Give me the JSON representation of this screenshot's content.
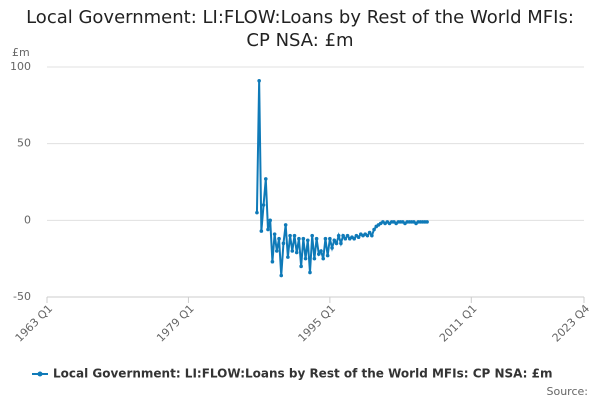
{
  "chart_data": {
    "type": "line",
    "title": "Local Government: LI:FLOW:Loans by Rest of the World MFIs: CP NSA: £m",
    "y_label": "£m",
    "source": "Source:",
    "categories": [
      "1963 Q1",
      null,
      null,
      null,
      null,
      null,
      null,
      null,
      null,
      null,
      null,
      null,
      null,
      null,
      null,
      null,
      null,
      null,
      null,
      null,
      null,
      null,
      null,
      null,
      null,
      null,
      null,
      null,
      null,
      null,
      null,
      null,
      null,
      null,
      null,
      null,
      null,
      null,
      null,
      null,
      null,
      null,
      null,
      null,
      null,
      null,
      null,
      null,
      null,
      null,
      null,
      null,
      null,
      null,
      null,
      null,
      null,
      null,
      null,
      null,
      null,
      null,
      null,
      null,
      "1979 Q1",
      null,
      null,
      null,
      null,
      null,
      null,
      null,
      null,
      null,
      null,
      null,
      null,
      null,
      null,
      null,
      null,
      null,
      null,
      null,
      null,
      null,
      null,
      null,
      null,
      null,
      null,
      null,
      null,
      null,
      null,
      null,
      null,
      null,
      null,
      null,
      null,
      null,
      null,
      null,
      null,
      null,
      null,
      null,
      null,
      null,
      null,
      null,
      null,
      null,
      null,
      null,
      null,
      null,
      null,
      null,
      null,
      null,
      null,
      null,
      null,
      null,
      null,
      null,
      "1995 Q1",
      null,
      null,
      null,
      null,
      null,
      null,
      null,
      null,
      null,
      null,
      null,
      null,
      null,
      null,
      null,
      null,
      null,
      null,
      null,
      null,
      null,
      null,
      null,
      null,
      null,
      null,
      null,
      null,
      null,
      null,
      null,
      null,
      null,
      null,
      null,
      null,
      null,
      null,
      null,
      null,
      null,
      null,
      null,
      null,
      null,
      null,
      null,
      null,
      null,
      null,
      null,
      null,
      null,
      null,
      null,
      null,
      null,
      null,
      null,
      null,
      null,
      null,
      null,
      "2011 Q1",
      null,
      null,
      null,
      null,
      null,
      null,
      null,
      null,
      null,
      null,
      null,
      null,
      null,
      null,
      null,
      null,
      null,
      null,
      null,
      null,
      null,
      null,
      null,
      null,
      null,
      null,
      null,
      null,
      null,
      null,
      null,
      null,
      null,
      null,
      null,
      null,
      null,
      null,
      null,
      null,
      null,
      null,
      null,
      null,
      null,
      null,
      null,
      null,
      null,
      null,
      "2023 Q4"
    ],
    "series": [
      {
        "name": "Local Government: LI:FLOW:Loans by Rest of the World MFIs: CP NSA: £m",
        "color": "#0f7ab8",
        "values": [
          null,
          null,
          null,
          null,
          null,
          null,
          null,
          null,
          null,
          null,
          null,
          null,
          null,
          null,
          null,
          null,
          null,
          null,
          null,
          null,
          null,
          null,
          null,
          null,
          null,
          null,
          null,
          null,
          null,
          null,
          null,
          null,
          null,
          null,
          null,
          null,
          null,
          null,
          null,
          null,
          null,
          null,
          null,
          null,
          null,
          null,
          null,
          null,
          null,
          null,
          null,
          null,
          null,
          null,
          null,
          null,
          null,
          null,
          null,
          null,
          null,
          null,
          null,
          null,
          null,
          null,
          null,
          null,
          null,
          null,
          null,
          null,
          null,
          null,
          null,
          null,
          null,
          null,
          null,
          null,
          null,
          null,
          null,
          null,
          null,
          null,
          null,
          null,
          null,
          null,
          null,
          null,
          null,
          null,
          null,
          5,
          91,
          -7,
          10,
          27,
          -6,
          0,
          -27,
          -9,
          -20,
          -12,
          -36,
          -15,
          -3,
          -24,
          -10,
          -20,
          -10,
          -21,
          -12,
          -30,
          -12,
          -25,
          -13,
          -34,
          -10,
          -25,
          -12,
          -22,
          -20,
          -25,
          -12,
          -23,
          -12,
          -18,
          -13,
          -15,
          -10,
          -15,
          -10,
          -12,
          -10,
          -12,
          -11,
          -12,
          -10,
          -11,
          -9,
          -10,
          -9,
          -10,
          -8,
          -10,
          -6,
          -4,
          -3,
          -2,
          -1,
          -2,
          -1,
          -2,
          -1,
          -1,
          -2,
          -1,
          -1,
          -1,
          -2,
          -1,
          -1,
          -1,
          -1,
          -2,
          -1,
          -1,
          -1,
          -1,
          -1,
          null,
          null,
          null,
          null,
          null,
          null,
          null,
          null,
          null,
          null,
          null,
          null,
          null,
          null,
          null,
          null,
          null,
          null,
          null,
          null,
          null,
          null,
          null,
          null,
          null,
          null,
          null,
          null,
          null,
          null,
          null,
          null,
          null,
          null,
          null,
          null,
          null,
          null,
          null,
          null,
          null,
          null,
          null,
          null,
          null,
          null,
          null,
          null,
          null,
          null,
          null,
          null,
          null,
          null,
          null,
          null,
          null,
          null,
          null,
          null,
          null,
          null,
          null,
          null,
          null,
          null,
          null,
          null,
          null,
          null,
          null
        ]
      }
    ],
    "ylim": [
      -50,
      100
    ],
    "yticks": [
      -50,
      0,
      50,
      100
    ],
    "grid": true,
    "legend": "bottom"
  }
}
